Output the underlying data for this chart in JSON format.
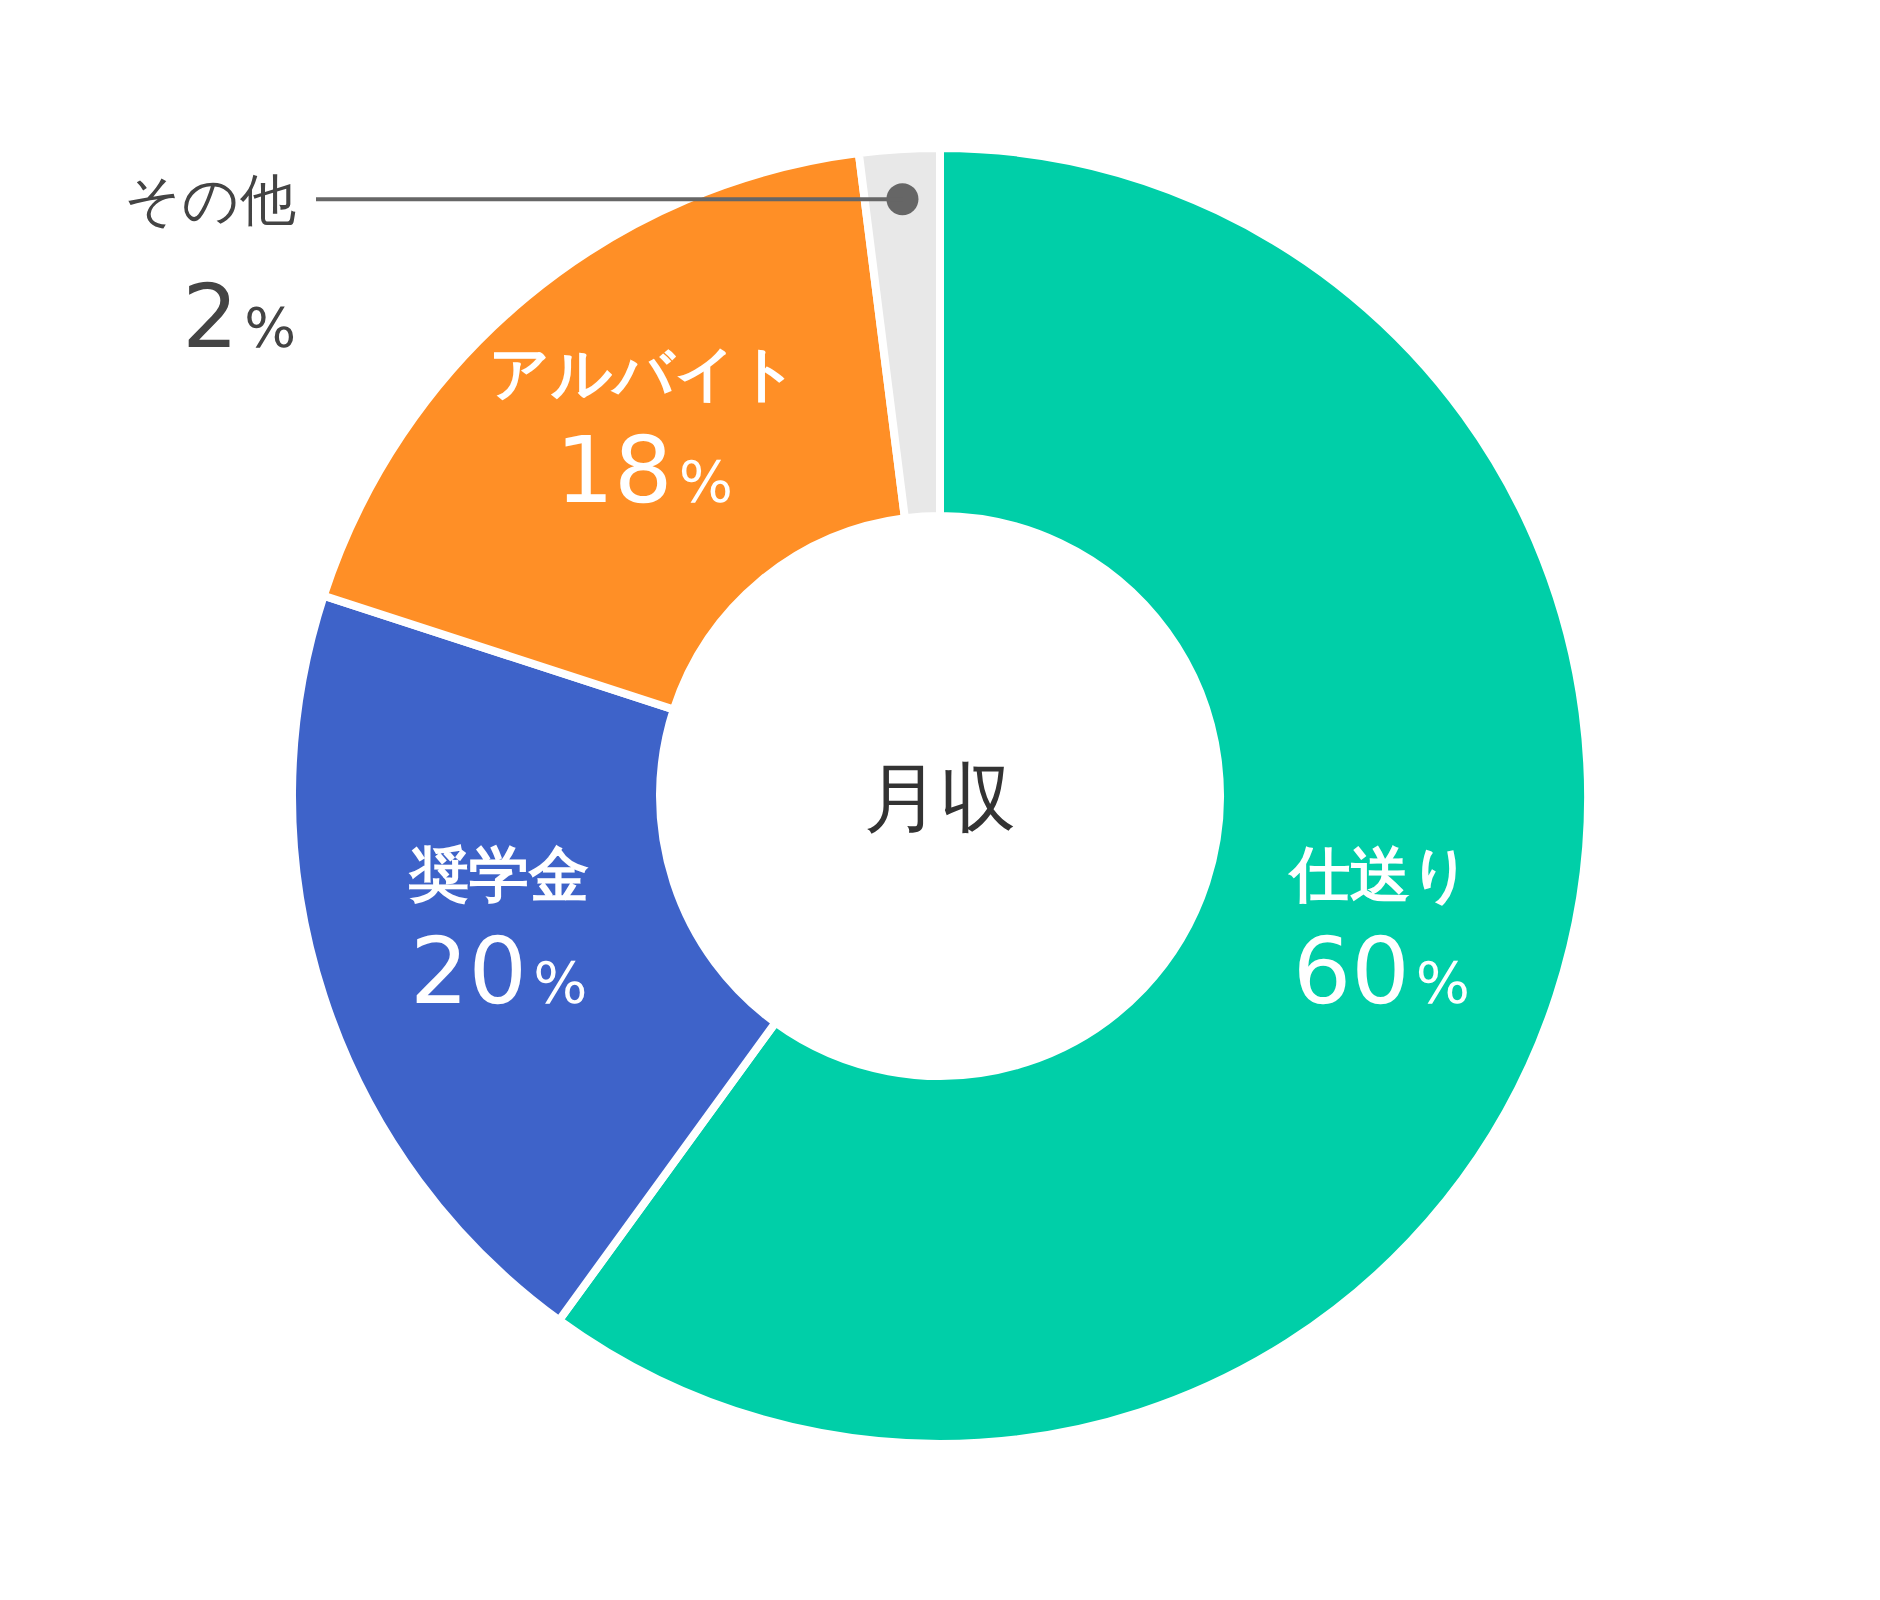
{
  "chart_data": {
    "type": "donut",
    "title": "月収",
    "categories": [
      "仕送り",
      "奨学金",
      "アルバイト",
      "その他"
    ],
    "values": [
      60,
      20,
      18,
      2
    ],
    "value_labels": [
      "60%",
      "20%",
      "18%",
      "2%"
    ],
    "colors": [
      "#00cfa8",
      "#3e63c9",
      "#ff8f26",
      "#e8e8e8"
    ]
  }
}
